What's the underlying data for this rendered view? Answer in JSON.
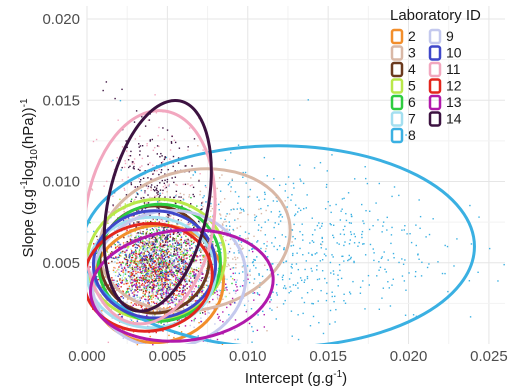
{
  "chart_data": {
    "type": "scatter",
    "xlabel": "Intercept (g.g",
    "xlabel_sup": "-1",
    "xlabel_end": ")",
    "ylabel_parts": [
      "Slope (g.g",
      "-1",
      "log",
      "10",
      "(hPa))",
      "-1"
    ],
    "xlim": [
      0,
      0.026
    ],
    "ylim": [
      0,
      0.0208
    ],
    "x_ticks": [
      "0.000",
      "0.005",
      "0.010",
      "0.015",
      "0.020",
      "0.025"
    ],
    "x_tick_values": [
      0,
      0.005,
      0.01,
      0.015,
      0.02,
      0.025
    ],
    "y_ticks": [
      "0.005",
      "0.010",
      "0.015",
      "0.020"
    ],
    "y_tick_values": [
      0.005,
      0.01,
      0.015,
      0.02
    ],
    "grid": true,
    "legend_title": "Laboratory ID",
    "legend_position": "top-right",
    "series": [
      {
        "name": "2",
        "color": "#f28e2b",
        "center": [
          0.0044,
          0.0037
        ],
        "rx": 0.0041,
        "ry": 0.0036,
        "angle": -10
      },
      {
        "name": "3",
        "color": "#d9b8a6",
        "center": [
          0.0067,
          0.0064
        ],
        "rx": 0.006,
        "ry": 0.0043,
        "angle": -12
      },
      {
        "name": "4",
        "color": "#6b3a1e",
        "center": [
          0.0042,
          0.0052
        ],
        "rx": 0.0034,
        "ry": 0.0033,
        "angle": 0
      },
      {
        "name": "5",
        "color": "#b9e84a",
        "center": [
          0.0043,
          0.0052
        ],
        "rx": 0.0043,
        "ry": 0.0037,
        "angle": -8
      },
      {
        "name": "6",
        "color": "#2ecc40",
        "center": [
          0.0045,
          0.005
        ],
        "rx": 0.0038,
        "ry": 0.0036,
        "angle": -8
      },
      {
        "name": "7",
        "color": "#a3dff0",
        "center": [
          0.004,
          0.0044
        ],
        "rx": 0.004,
        "ry": 0.0034,
        "angle": 0
      },
      {
        "name": "8",
        "color": "#3ab0e2",
        "center": [
          0.0119,
          0.006
        ],
        "rx": 0.0122,
        "ry": 0.0062,
        "angle": 0
      },
      {
        "name": "9",
        "color": "#c4c9ee",
        "center": [
          0.0051,
          0.004
        ],
        "rx": 0.0048,
        "ry": 0.0042,
        "angle": -10
      },
      {
        "name": "10",
        "color": "#3f47c9",
        "center": [
          0.0042,
          0.0049
        ],
        "rx": 0.0038,
        "ry": 0.0033,
        "angle": 0
      },
      {
        "name": "11",
        "color": "#f2a7bf",
        "center": [
          0.0039,
          0.0078
        ],
        "rx": 0.004,
        "ry": 0.0066,
        "angle": 8
      },
      {
        "name": "12",
        "color": "#e3261e",
        "center": [
          0.0038,
          0.0041
        ],
        "rx": 0.004,
        "ry": 0.0033,
        "angle": -8
      },
      {
        "name": "13",
        "color": "#b119ab",
        "center": [
          0.0059,
          0.0036
        ],
        "rx": 0.0057,
        "ry": 0.0034,
        "angle": -6
      },
      {
        "name": "14",
        "color": "#3c1240",
        "center": [
          0.0044,
          0.0085
        ],
        "rx": 0.0031,
        "ry": 0.0066,
        "angle": 12
      }
    ]
  }
}
